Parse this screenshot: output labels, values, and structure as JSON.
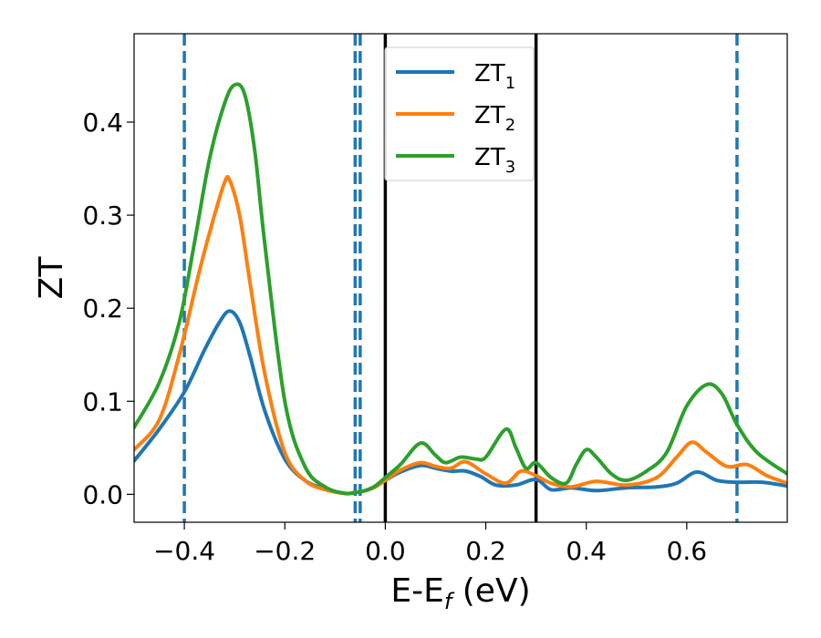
{
  "chart_data": {
    "type": "line",
    "xlabel": "E-E_f (eV)",
    "ylabel": "ZT",
    "xlim": [
      -0.5,
      0.8
    ],
    "ylim": [
      -0.03,
      0.495
    ],
    "grid": false,
    "legend_position": "top-center",
    "x_ticks": [
      -0.4,
      -0.2,
      0.0,
      0.2,
      0.4,
      0.6
    ],
    "x_tick_labels": [
      "−0.4",
      "−0.2",
      "0.0",
      "0.2",
      "0.4",
      "0.6"
    ],
    "y_ticks": [
      0.0,
      0.1,
      0.2,
      0.3,
      0.4
    ],
    "y_tick_labels": [
      "0.0",
      "0.1",
      "0.2",
      "0.3",
      "0.4"
    ],
    "vertical_lines_dashed": {
      "color": "#1f77b4",
      "x": [
        -0.4,
        -0.06,
        -0.05,
        0.7
      ]
    },
    "vertical_lines_solid": {
      "color": "#000000",
      "x": [
        0.0,
        0.3
      ]
    },
    "series": [
      {
        "name": "ZT_1",
        "legend_main": "ZT",
        "legend_sub": "1",
        "color": "#1f77b4",
        "x": [
          -0.5,
          -0.45,
          -0.4,
          -0.36,
          -0.33,
          -0.31,
          -0.29,
          -0.27,
          -0.24,
          -0.2,
          -0.16,
          -0.12,
          -0.08,
          -0.06,
          -0.04,
          -0.02,
          0.0,
          0.03,
          0.07,
          0.1,
          0.13,
          0.16,
          0.19,
          0.22,
          0.26,
          0.3,
          0.33,
          0.37,
          0.42,
          0.48,
          0.54,
          0.58,
          0.62,
          0.66,
          0.7,
          0.75,
          0.8
        ],
        "y": [
          0.036,
          0.07,
          0.11,
          0.155,
          0.185,
          0.197,
          0.185,
          0.15,
          0.09,
          0.038,
          0.015,
          0.006,
          0.001,
          0.002,
          0.004,
          0.008,
          0.015,
          0.024,
          0.031,
          0.028,
          0.025,
          0.025,
          0.019,
          0.01,
          0.01,
          0.016,
          0.005,
          0.007,
          0.004,
          0.007,
          0.008,
          0.012,
          0.024,
          0.015,
          0.013,
          0.013,
          0.009
        ]
      },
      {
        "name": "ZT_2",
        "legend_main": "ZT",
        "legend_sub": "2",
        "color": "#ff7f0e",
        "x": [
          -0.5,
          -0.45,
          -0.41,
          -0.37,
          -0.34,
          -0.32,
          -0.31,
          -0.29,
          -0.27,
          -0.24,
          -0.2,
          -0.16,
          -0.12,
          -0.08,
          -0.06,
          -0.04,
          -0.02,
          0.0,
          0.03,
          0.07,
          0.1,
          0.13,
          0.16,
          0.2,
          0.24,
          0.27,
          0.3,
          0.33,
          0.37,
          0.42,
          0.48,
          0.54,
          0.58,
          0.61,
          0.64,
          0.68,
          0.72,
          0.76,
          0.8
        ],
        "y": [
          0.048,
          0.08,
          0.15,
          0.24,
          0.3,
          0.335,
          0.338,
          0.3,
          0.23,
          0.13,
          0.045,
          0.015,
          0.005,
          0.001,
          0.002,
          0.004,
          0.008,
          0.015,
          0.026,
          0.034,
          0.03,
          0.028,
          0.035,
          0.022,
          0.012,
          0.025,
          0.02,
          0.012,
          0.008,
          0.014,
          0.01,
          0.018,
          0.04,
          0.056,
          0.045,
          0.03,
          0.032,
          0.02,
          0.012
        ]
      },
      {
        "name": "ZT_3",
        "legend_main": "ZT",
        "legend_sub": "3",
        "color": "#2ca02c",
        "x": [
          -0.5,
          -0.45,
          -0.41,
          -0.38,
          -0.35,
          -0.32,
          -0.3,
          -0.28,
          -0.26,
          -0.24,
          -0.2,
          -0.16,
          -0.12,
          -0.08,
          -0.06,
          -0.04,
          -0.02,
          0.0,
          0.03,
          0.07,
          0.1,
          0.12,
          0.15,
          0.18,
          0.2,
          0.24,
          0.26,
          0.28,
          0.3,
          0.33,
          0.36,
          0.38,
          0.4,
          0.42,
          0.45,
          0.48,
          0.52,
          0.56,
          0.6,
          0.64,
          0.67,
          0.7,
          0.74,
          0.8
        ],
        "y": [
          0.072,
          0.12,
          0.185,
          0.27,
          0.36,
          0.42,
          0.44,
          0.43,
          0.37,
          0.27,
          0.1,
          0.03,
          0.008,
          0.001,
          0.002,
          0.004,
          0.009,
          0.018,
          0.032,
          0.055,
          0.042,
          0.034,
          0.04,
          0.038,
          0.04,
          0.07,
          0.05,
          0.028,
          0.034,
          0.018,
          0.012,
          0.032,
          0.048,
          0.04,
          0.022,
          0.015,
          0.025,
          0.045,
          0.095,
          0.118,
          0.108,
          0.075,
          0.045,
          0.022
        ]
      }
    ]
  }
}
